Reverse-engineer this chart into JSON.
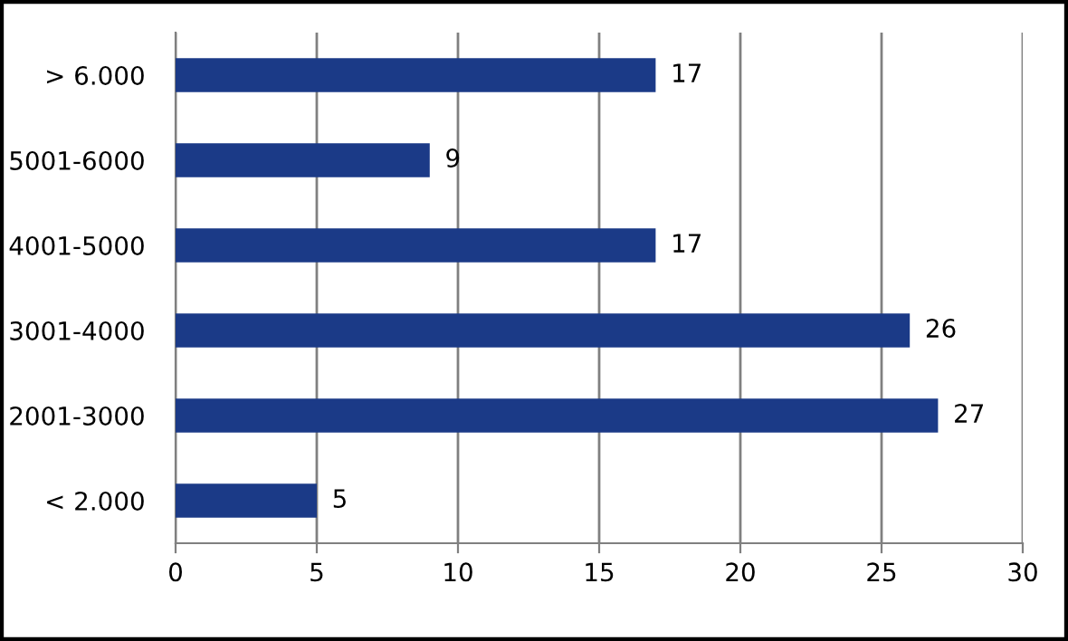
{
  "chart_data": {
    "type": "bar",
    "orientation": "horizontal",
    "categories": [
      "> 6.000",
      "5001-6000",
      "4001-5000",
      "3001-4000",
      "2001-3000",
      "< 2.000"
    ],
    "values": [
      17,
      9,
      17,
      26,
      27,
      5
    ],
    "color": "#1b3a87",
    "xlim": [
      0,
      30
    ],
    "xticks": [
      0,
      5,
      10,
      15,
      20,
      25,
      30
    ],
    "grid": "x",
    "data_labels": true,
    "legend": false
  }
}
